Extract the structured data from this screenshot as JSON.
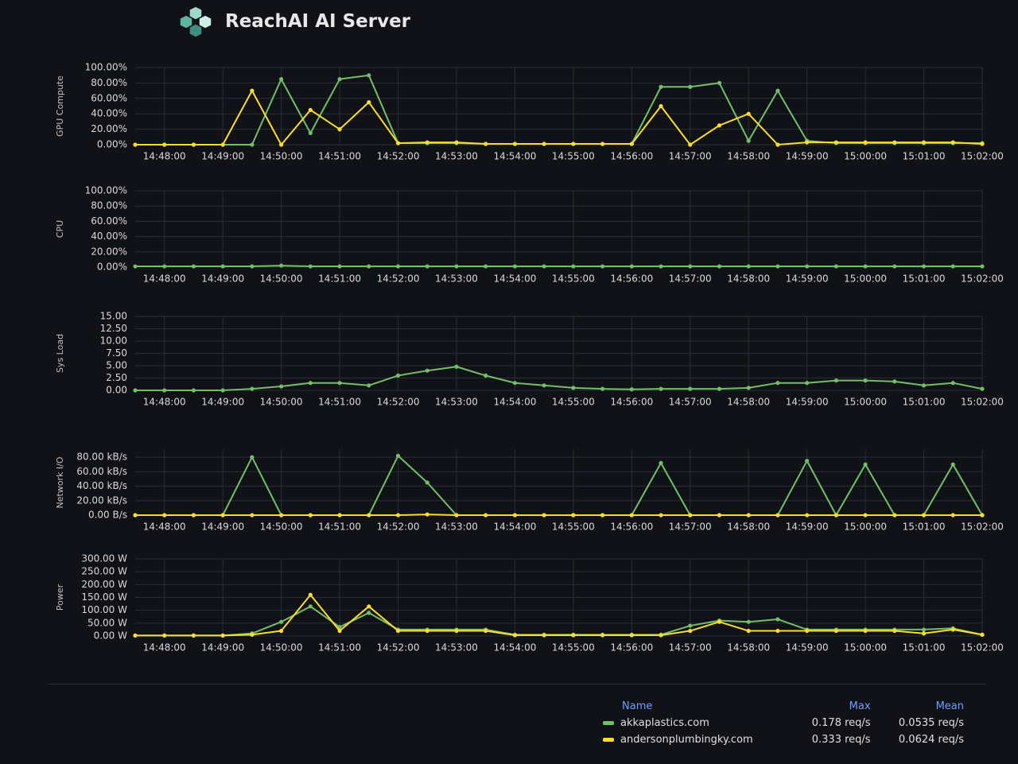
{
  "header": {
    "title": "ReachAI AI Server"
  },
  "chart_data": [
    {
      "type": "line",
      "y_label": "GPU Compute",
      "categories": [
        null,
        "14:48:00",
        null,
        "14:49:00",
        null,
        "14:50:00",
        null,
        "14:51:00",
        null,
        "14:52:00",
        null,
        "14:53:00",
        null,
        "14:54:00",
        null,
        "14:55:00",
        null,
        "14:56:00",
        null,
        "14:57:00",
        null,
        "14:58:00",
        null,
        "14:59:00",
        null,
        "15:00:00",
        null,
        "15:01:00",
        null,
        "15:02:00"
      ],
      "series": [
        {
          "color": "#73bf69",
          "values": [
            0,
            0,
            0,
            0,
            0,
            85,
            15,
            85,
            90,
            2,
            2,
            2,
            1,
            1,
            1,
            1,
            1,
            1,
            75,
            75,
            80,
            5,
            70,
            5,
            2,
            2,
            2,
            2,
            2,
            2
          ]
        },
        {
          "color": "#fade2a",
          "values": [
            0,
            0,
            0,
            0,
            70,
            0,
            45,
            20,
            55,
            2,
            3,
            3,
            1,
            1,
            1,
            1,
            1,
            1,
            50,
            0,
            25,
            40,
            0,
            3,
            3,
            3,
            3,
            3,
            3,
            1
          ]
        }
      ],
      "ylim": [
        0,
        100
      ],
      "yticks": [
        {
          "value": 0,
          "label": "0.00%"
        },
        {
          "value": 20,
          "label": "20.00%"
        },
        {
          "value": 40,
          "label": "40.00%"
        },
        {
          "value": 60,
          "label": "60.00%"
        },
        {
          "value": 80,
          "label": "80.00%"
        },
        {
          "value": 100,
          "label": "100.00%"
        }
      ],
      "grid": true
    },
    {
      "type": "line",
      "y_label": "CPU",
      "categories": [
        null,
        "14:48:00",
        null,
        "14:49:00",
        null,
        "14:50:00",
        null,
        "14:51:00",
        null,
        "14:52:00",
        null,
        "14:53:00",
        null,
        "14:54:00",
        null,
        "14:55:00",
        null,
        "14:56:00",
        null,
        "14:57:00",
        null,
        "14:58:00",
        null,
        "14:59:00",
        null,
        "15:00:00",
        null,
        "15:01:00",
        null,
        "15:02:00"
      ],
      "series": [
        {
          "color": "#73bf69",
          "values": [
            1,
            1,
            1,
            1,
            1,
            2,
            1,
            1,
            1,
            1,
            1,
            1,
            1,
            1,
            1,
            1,
            1,
            1,
            1,
            1,
            1,
            1,
            1,
            1,
            1,
            1,
            1,
            1,
            1,
            1
          ]
        }
      ],
      "ylim": [
        0,
        100
      ],
      "yticks": [
        {
          "value": 0,
          "label": "0.00%"
        },
        {
          "value": 20,
          "label": "20.00%"
        },
        {
          "value": 40,
          "label": "40.00%"
        },
        {
          "value": 60,
          "label": "60.00%"
        },
        {
          "value": 80,
          "label": "80.00%"
        },
        {
          "value": 100,
          "label": "100.00%"
        }
      ],
      "grid": true
    },
    {
      "type": "line",
      "y_label": "Sys Load",
      "categories": [
        null,
        "14:48:00",
        null,
        "14:49:00",
        null,
        "14:50:00",
        null,
        "14:51:00",
        null,
        "14:52:00",
        null,
        "14:53:00",
        null,
        "14:54:00",
        null,
        "14:55:00",
        null,
        "14:56:00",
        null,
        "14:57:00",
        null,
        "14:58:00",
        null,
        "14:59:00",
        null,
        "15:00:00",
        null,
        "15:01:00",
        null,
        "15:02:00"
      ],
      "series": [
        {
          "color": "#73bf69",
          "values": [
            0,
            0,
            0,
            0,
            0.3,
            0.8,
            1.5,
            1.5,
            1.0,
            3.0,
            4.0,
            4.8,
            3.0,
            1.5,
            1.0,
            0.5,
            0.3,
            0.2,
            0.3,
            0.3,
            0.3,
            0.5,
            1.5,
            1.5,
            2.0,
            2.0,
            1.8,
            1.0,
            1.5,
            0.3
          ]
        }
      ],
      "ylim": [
        0,
        15
      ],
      "yticks": [
        {
          "value": 0,
          "label": "0.00"
        },
        {
          "value": 2.5,
          "label": "2.50"
        },
        {
          "value": 5,
          "label": "5.00"
        },
        {
          "value": 7.5,
          "label": "7.50"
        },
        {
          "value": 10,
          "label": "10.00"
        },
        {
          "value": 12.5,
          "label": "12.50"
        },
        {
          "value": 15,
          "label": "15.00"
        }
      ],
      "grid": true
    },
    {
      "type": "line",
      "y_label": "Network I/O",
      "categories": [
        null,
        "14:48:00",
        null,
        "14:49:00",
        null,
        "14:50:00",
        null,
        "14:51:00",
        null,
        "14:52:00",
        null,
        "14:53:00",
        null,
        "14:54:00",
        null,
        "14:55:00",
        null,
        "14:56:00",
        null,
        "14:57:00",
        null,
        "14:58:00",
        null,
        "14:59:00",
        null,
        "15:00:00",
        null,
        "15:01:00",
        null,
        "15:02:00"
      ],
      "series": [
        {
          "color": "#73bf69",
          "values": [
            0,
            0,
            0,
            0,
            80,
            0,
            0,
            0,
            0,
            82,
            45,
            0,
            0,
            0,
            0,
            0,
            0,
            0,
            72,
            0,
            0,
            0,
            0,
            75,
            0,
            70,
            0,
            0,
            70,
            0
          ]
        },
        {
          "color": "#fade2a",
          "values": [
            0,
            0,
            0,
            0,
            0,
            0,
            0,
            0,
            0,
            0,
            1,
            0,
            0,
            0,
            0,
            0,
            0,
            0,
            0,
            0,
            0,
            0,
            0,
            0,
            0,
            0,
            0,
            0,
            0,
            0
          ]
        }
      ],
      "ylim": [
        0,
        90
      ],
      "yticks": [
        {
          "value": 0,
          "label": "0.00 B/s"
        },
        {
          "value": 20,
          "label": "20.00 kB/s"
        },
        {
          "value": 40,
          "label": "40.00 kB/s"
        },
        {
          "value": 60,
          "label": "60.00 kB/s"
        },
        {
          "value": 80,
          "label": "80.00 kB/s"
        }
      ],
      "grid": true
    },
    {
      "type": "line",
      "y_label": "Power",
      "categories": [
        null,
        "14:48:00",
        null,
        "14:49:00",
        null,
        "14:50:00",
        null,
        "14:51:00",
        null,
        "14:52:00",
        null,
        "14:53:00",
        null,
        "14:54:00",
        null,
        "14:55:00",
        null,
        "14:56:00",
        null,
        "14:57:00",
        null,
        "14:58:00",
        null,
        "14:59:00",
        null,
        "15:00:00",
        null,
        "15:01:00",
        null,
        "15:02:00"
      ],
      "series": [
        {
          "color": "#73bf69",
          "values": [
            2,
            2,
            2,
            2,
            10,
            55,
            115,
            35,
            90,
            25,
            25,
            25,
            25,
            5,
            5,
            5,
            5,
            5,
            5,
            40,
            60,
            55,
            65,
            25,
            25,
            25,
            25,
            25,
            30,
            5
          ]
        },
        {
          "color": "#fade2a",
          "values": [
            2,
            2,
            2,
            2,
            5,
            20,
            160,
            20,
            115,
            20,
            20,
            20,
            20,
            3,
            3,
            3,
            3,
            3,
            3,
            20,
            55,
            20,
            20,
            20,
            20,
            20,
            20,
            10,
            25,
            5
          ]
        }
      ],
      "ylim": [
        0,
        300
      ],
      "yticks": [
        {
          "value": 0,
          "label": "0.00 W"
        },
        {
          "value": 50,
          "label": "50.00 W"
        },
        {
          "value": 100,
          "label": "100.00 W"
        },
        {
          "value": 150,
          "label": "150.00 W"
        },
        {
          "value": 200,
          "label": "200.00 W"
        },
        {
          "value": 250,
          "label": "250.00 W"
        },
        {
          "value": 300,
          "label": "300.00 W"
        }
      ],
      "grid": true
    }
  ],
  "legend_table": {
    "columns": [
      "Name",
      "Max",
      "Mean"
    ],
    "rows": [
      {
        "name": "akkaplastics.com",
        "color": "#73bf69",
        "max": "0.178 req/s",
        "mean": "0.0535 req/s"
      },
      {
        "name": "andersonplumbingky.com",
        "color": "#fade2a",
        "max": "0.333 req/s",
        "mean": "0.0624 req/s"
      }
    ]
  }
}
